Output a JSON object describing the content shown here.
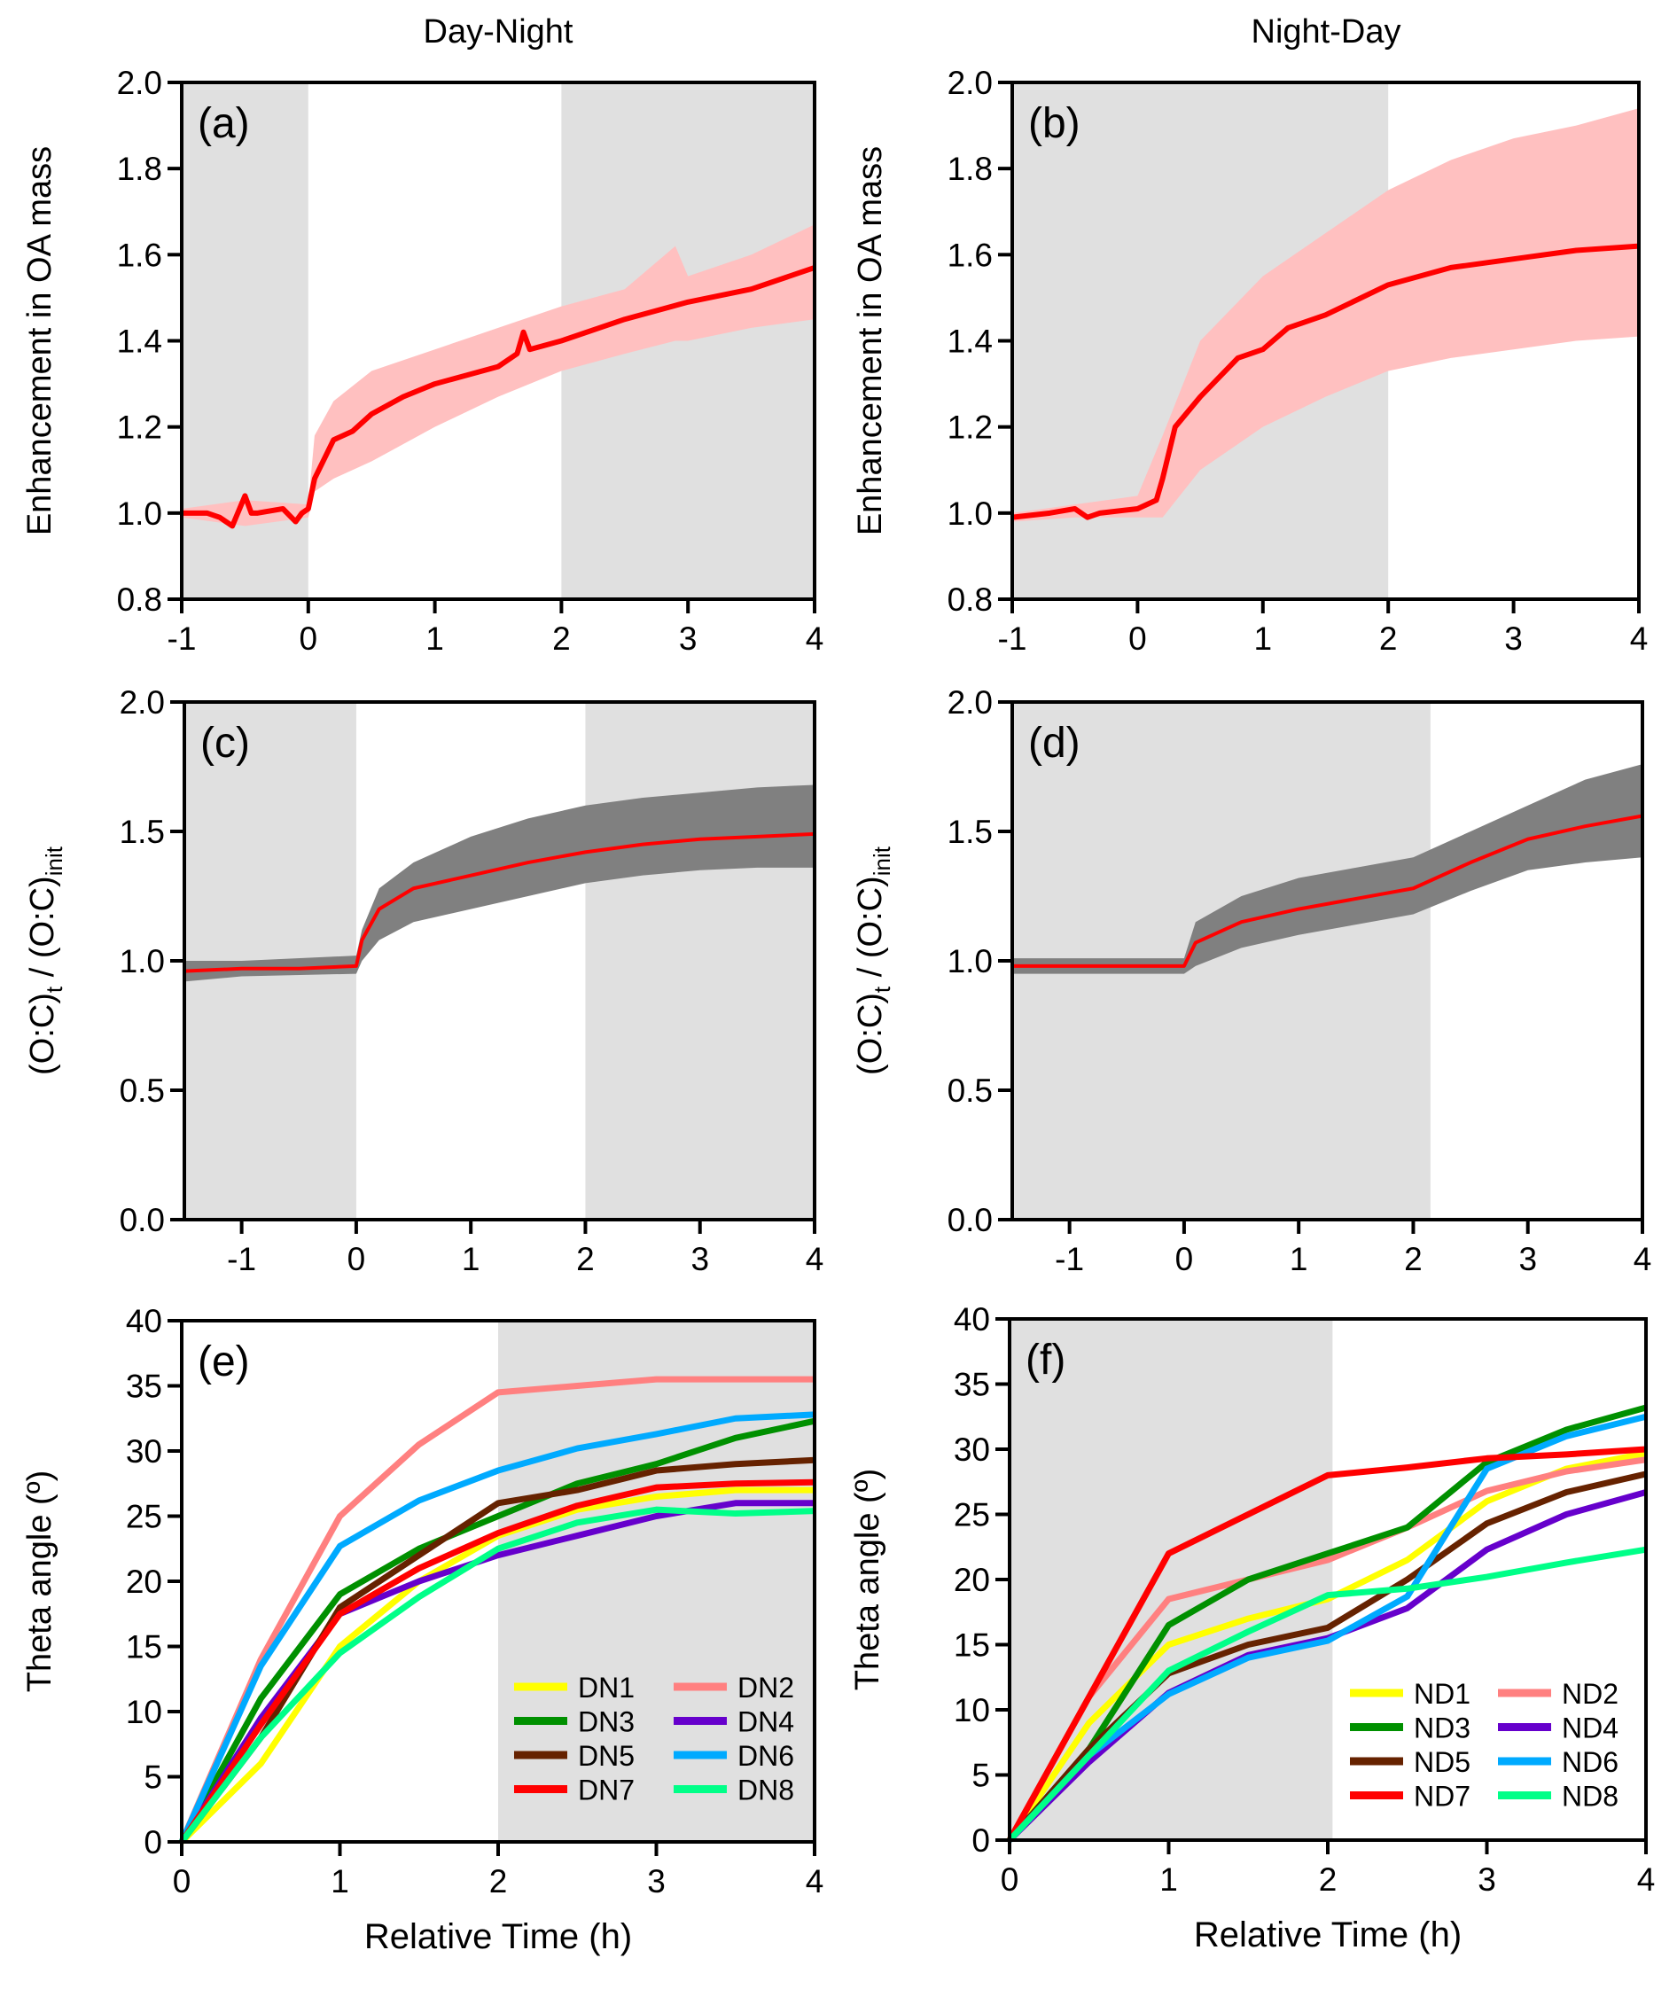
{
  "column_titles": [
    "Day-Night",
    "Night-Day"
  ],
  "colors": {
    "shade": "#e0e0e0",
    "mean": "#ff0000",
    "oa_band": "#ffc0c0",
    "oc_band": "#808080",
    "series": {
      "1": "#ffff00",
      "2": "#ff8080",
      "3": "#009000",
      "4": "#6600cc",
      "5": "#662200",
      "6": "#00aaff",
      "7": "#ff0000",
      "8": "#00ff88"
    }
  },
  "chart_data": [
    {
      "id": "a",
      "panel_label": "(a)",
      "type": "area",
      "ylabel_parts": [
        [
          "Enhancement in OA mass",
          ""
        ]
      ],
      "xlim": [
        -1,
        4
      ],
      "ylim": [
        0.8,
        2.0
      ],
      "xticks": [
        -1,
        0,
        1,
        2,
        3,
        4
      ],
      "yticks": [
        "0.8",
        "1.0",
        "1.2",
        "1.4",
        "1.6",
        "1.8",
        "2.0"
      ],
      "shaded_x": [
        [
          -1,
          0
        ],
        [
          2,
          4
        ]
      ],
      "band_color": "oa_band",
      "mean": {
        "x": [
          -1,
          -0.8,
          -0.7,
          -0.6,
          -0.5,
          -0.45,
          -0.4,
          -0.2,
          -0.1,
          -0.05,
          0,
          0.05,
          0.2,
          0.35,
          0.5,
          0.75,
          1,
          1.25,
          1.5,
          1.65,
          1.7,
          1.75,
          2,
          2.5,
          3,
          3.5,
          4
        ],
        "y": [
          1.0,
          1.0,
          0.99,
          0.97,
          1.04,
          1.0,
          1.0,
          1.01,
          0.98,
          1.0,
          1.01,
          1.08,
          1.17,
          1.19,
          1.23,
          1.27,
          1.3,
          1.32,
          1.34,
          1.37,
          1.42,
          1.38,
          1.4,
          1.45,
          1.49,
          1.52,
          1.57
        ]
      },
      "band": {
        "x": [
          -1,
          -0.5,
          0,
          0.05,
          0.2,
          0.5,
          1,
          1.5,
          2,
          2.5,
          2.9,
          3,
          3.5,
          4
        ],
        "lower": [
          0.99,
          0.97,
          0.99,
          1.05,
          1.08,
          1.12,
          1.2,
          1.27,
          1.33,
          1.37,
          1.4,
          1.4,
          1.43,
          1.45
        ],
        "upper": [
          1.01,
          1.03,
          1.02,
          1.18,
          1.26,
          1.33,
          1.38,
          1.43,
          1.48,
          1.52,
          1.62,
          1.55,
          1.6,
          1.67
        ]
      }
    },
    {
      "id": "b",
      "panel_label": "(b)",
      "type": "area",
      "ylabel_parts": [
        [
          "Enhancement in OA mass",
          ""
        ]
      ],
      "xlim": [
        -1,
        4
      ],
      "ylim": [
        0.8,
        2.0
      ],
      "xticks": [
        -1,
        0,
        1,
        2,
        3,
        4
      ],
      "yticks": [
        "0.8",
        "1.0",
        "1.2",
        "1.4",
        "1.6",
        "1.8",
        "2.0"
      ],
      "shaded_x": [
        [
          -1,
          2
        ]
      ],
      "band_color": "oa_band",
      "mean": {
        "x": [
          -1,
          -0.7,
          -0.5,
          -0.4,
          -0.3,
          0,
          0.15,
          0.2,
          0.3,
          0.5,
          0.8,
          1,
          1.2,
          1.5,
          2,
          2.5,
          3,
          3.5,
          4
        ],
        "y": [
          0.99,
          1.0,
          1.01,
          0.99,
          1.0,
          1.01,
          1.03,
          1.08,
          1.2,
          1.27,
          1.36,
          1.38,
          1.43,
          1.46,
          1.53,
          1.57,
          1.59,
          1.61,
          1.62
        ]
      },
      "band": {
        "x": [
          -1,
          -0.5,
          0,
          0.2,
          0.5,
          1,
          1.5,
          2,
          2.5,
          3,
          3.5,
          4
        ],
        "lower": [
          0.98,
          0.99,
          0.99,
          0.99,
          1.1,
          1.2,
          1.27,
          1.33,
          1.36,
          1.38,
          1.4,
          1.41
        ],
        "upper": [
          1.0,
          1.02,
          1.04,
          1.18,
          1.4,
          1.55,
          1.65,
          1.75,
          1.82,
          1.87,
          1.9,
          1.94
        ]
      }
    },
    {
      "id": "c",
      "panel_label": "(c)",
      "type": "area",
      "ylabel_parts": [
        [
          "(O:C)",
          ""
        ],
        [
          "t",
          "sub"
        ],
        [
          " / (O:C)",
          ""
        ],
        [
          "init",
          "sub"
        ]
      ],
      "xlim": [
        -1.5,
        4
      ],
      "ylim": [
        0,
        2.0
      ],
      "xticks": [
        -1,
        0,
        1,
        2,
        3,
        4
      ],
      "yticks": [
        "0.0",
        "0.5",
        "1.0",
        "1.5",
        "2.0"
      ],
      "shaded_x": [
        [
          -1.5,
          0
        ],
        [
          2,
          4
        ]
      ],
      "band_color": "oc_band",
      "mean": {
        "x": [
          -1.5,
          -1,
          -0.5,
          0,
          0.05,
          0.2,
          0.5,
          1,
          1.5,
          2,
          2.5,
          3,
          3.5,
          4
        ],
        "y": [
          0.96,
          0.97,
          0.97,
          0.98,
          1.08,
          1.2,
          1.28,
          1.33,
          1.38,
          1.42,
          1.45,
          1.47,
          1.48,
          1.49
        ]
      },
      "band": {
        "x": [
          -1.5,
          -1,
          0,
          0.05,
          0.2,
          0.5,
          1,
          1.5,
          2,
          2.5,
          3,
          3.5,
          4
        ],
        "lower": [
          0.92,
          0.94,
          0.95,
          1.0,
          1.08,
          1.15,
          1.2,
          1.25,
          1.3,
          1.33,
          1.35,
          1.36,
          1.36
        ],
        "upper": [
          1.0,
          1.0,
          1.02,
          1.12,
          1.28,
          1.38,
          1.48,
          1.55,
          1.6,
          1.63,
          1.65,
          1.67,
          1.68
        ]
      }
    },
    {
      "id": "d",
      "panel_label": "(d)",
      "type": "area",
      "ylabel_parts": [
        [
          "(O:C)",
          ""
        ],
        [
          "t",
          "sub"
        ],
        [
          " / (O:C)",
          ""
        ],
        [
          "init",
          "sub"
        ]
      ],
      "xlim": [
        -1.5,
        4
      ],
      "ylim": [
        0,
        2.0
      ],
      "xticks": [
        -1,
        0,
        1,
        2,
        3,
        4
      ],
      "yticks": [
        "0.0",
        "0.5",
        "1.0",
        "1.5",
        "2.0"
      ],
      "shaded_x": [
        [
          -1.5,
          2.15
        ]
      ],
      "band_color": "oc_band",
      "mean": {
        "x": [
          -1.5,
          -1,
          -0.5,
          0,
          0.1,
          0.5,
          1,
          1.5,
          2,
          2.5,
          3,
          3.5,
          4
        ],
        "y": [
          0.98,
          0.98,
          0.98,
          0.98,
          1.07,
          1.15,
          1.2,
          1.24,
          1.28,
          1.38,
          1.47,
          1.52,
          1.56
        ]
      },
      "band": {
        "x": [
          -1.5,
          -1,
          0,
          0.1,
          0.5,
          1,
          1.5,
          2,
          2.5,
          3,
          3.5,
          4
        ],
        "lower": [
          0.95,
          0.95,
          0.95,
          0.98,
          1.05,
          1.1,
          1.14,
          1.18,
          1.27,
          1.35,
          1.38,
          1.4
        ],
        "upper": [
          1.01,
          1.01,
          1.01,
          1.15,
          1.25,
          1.32,
          1.36,
          1.4,
          1.5,
          1.6,
          1.7,
          1.76
        ]
      }
    },
    {
      "id": "e",
      "panel_label": "(e)",
      "type": "line",
      "ylabel_parts": [
        [
          "Theta angle (º)",
          ""
        ]
      ],
      "xlabel": "Relative Time (h)",
      "xlim": [
        0,
        4
      ],
      "ylim": [
        0,
        40
      ],
      "xticks": [
        0,
        1,
        2,
        3,
        4
      ],
      "yticks": [
        "0",
        "5",
        "10",
        "15",
        "20",
        "25",
        "30",
        "35",
        "40"
      ],
      "shaded_x": [
        [
          2,
          4
        ]
      ],
      "legend_position": "lower-right",
      "x": [
        0,
        0.5,
        1,
        1.5,
        2,
        2.5,
        3,
        3.5,
        4
      ],
      "series": [
        {
          "name": "DN1",
          "color_key": "1",
          "values": [
            0,
            6,
            15,
            20,
            23.5,
            25.5,
            26.5,
            27,
            27
          ]
        },
        {
          "name": "DN2",
          "color_key": "2",
          "values": [
            0,
            14,
            25,
            30.5,
            34.5,
            35,
            35.5,
            35.5,
            35.5
          ]
        },
        {
          "name": "DN3",
          "color_key": "3",
          "values": [
            0,
            11,
            19,
            22.5,
            25,
            27.5,
            29,
            31,
            32.3
          ]
        },
        {
          "name": "DN4",
          "color_key": "4",
          "values": [
            0,
            9.5,
            17.5,
            20,
            22,
            23.5,
            25,
            26,
            26
          ]
        },
        {
          "name": "DN5",
          "color_key": "5",
          "values": [
            0,
            8,
            18,
            22,
            26,
            27,
            28.5,
            29,
            29.3
          ]
        },
        {
          "name": "DN6",
          "color_key": "6",
          "values": [
            0,
            13.5,
            22.7,
            26.2,
            28.5,
            30.2,
            31.3,
            32.5,
            32.8
          ]
        },
        {
          "name": "DN7",
          "color_key": "7",
          "values": [
            0,
            9,
            17.5,
            21,
            23.7,
            25.8,
            27.2,
            27.5,
            27.6
          ]
        },
        {
          "name": "DN8",
          "color_key": "8",
          "values": [
            0,
            8,
            14.5,
            18.8,
            22.5,
            24.5,
            25.5,
            25.2,
            25.4
          ]
        }
      ]
    },
    {
      "id": "f",
      "panel_label": "(f)",
      "type": "line",
      "ylabel_parts": [
        [
          "Theta angle (º)",
          ""
        ]
      ],
      "xlabel": "Relative Time (h)",
      "xlim": [
        0,
        4
      ],
      "ylim": [
        0,
        40
      ],
      "xticks": [
        0,
        1,
        2,
        3,
        4
      ],
      "yticks": [
        "0",
        "5",
        "10",
        "15",
        "20",
        "25",
        "30",
        "35",
        "40"
      ],
      "shaded_x": [
        [
          0,
          2.03
        ]
      ],
      "legend_position": "lower-right",
      "x": [
        0,
        0.5,
        1,
        1.5,
        2,
        2.5,
        3,
        3.5,
        4
      ],
      "series": [
        {
          "name": "ND1",
          "color_key": "1",
          "values": [
            0,
            9,
            15,
            17,
            18.5,
            21.5,
            26,
            28.5,
            29.7
          ]
        },
        {
          "name": "ND2",
          "color_key": "2",
          "values": [
            0,
            11,
            18.5,
            20,
            21.5,
            24,
            26.8,
            28.3,
            29.2
          ]
        },
        {
          "name": "ND3",
          "color_key": "3",
          "values": [
            0,
            7,
            16.5,
            20,
            22,
            24,
            29,
            31.5,
            33.2
          ]
        },
        {
          "name": "ND4",
          "color_key": "4",
          "values": [
            0,
            6,
            11.3,
            14.2,
            15.5,
            17.8,
            22.3,
            25,
            26.7
          ]
        },
        {
          "name": "ND5",
          "color_key": "5",
          "values": [
            0,
            7,
            12.8,
            15,
            16.3,
            20,
            24.3,
            26.7,
            28.1
          ]
        },
        {
          "name": "ND6",
          "color_key": "6",
          "values": [
            0,
            6.5,
            11.2,
            14,
            15.3,
            18.7,
            28.5,
            31,
            32.5
          ]
        },
        {
          "name": "ND7",
          "color_key": "7",
          "values": [
            0,
            11,
            22,
            25,
            28,
            28.6,
            29.3,
            29.6,
            30
          ]
        },
        {
          "name": "ND8",
          "color_key": "8",
          "values": [
            0,
            6.5,
            13,
            16,
            18.8,
            19.3,
            20.2,
            21.3,
            22.3
          ]
        }
      ]
    }
  ]
}
